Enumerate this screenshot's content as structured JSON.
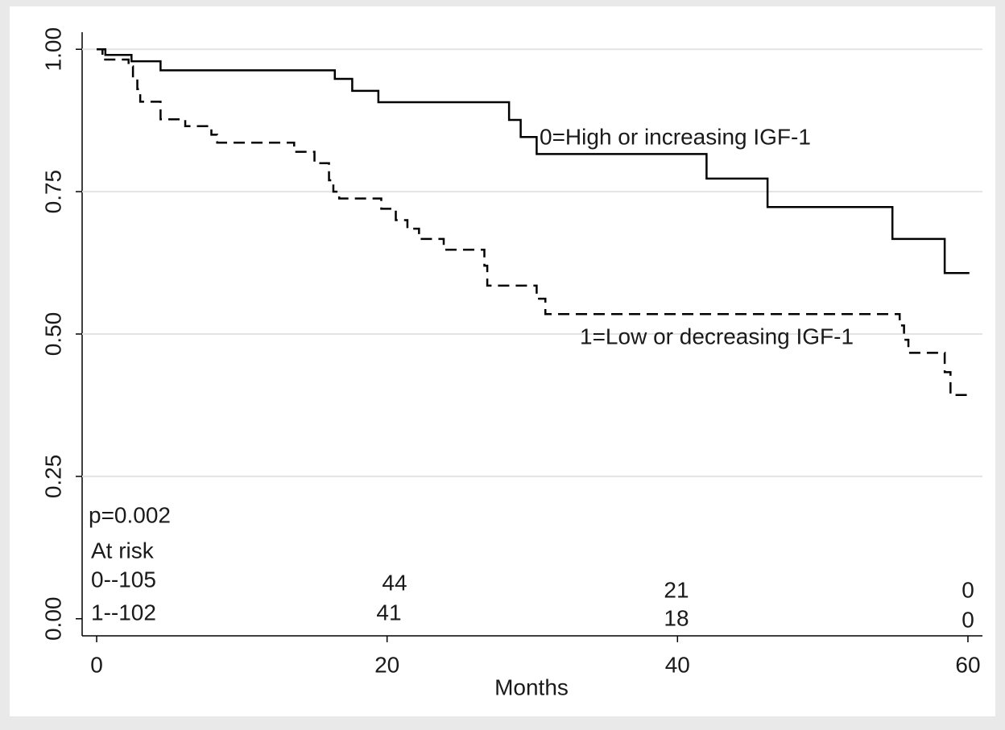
{
  "chart_data": {
    "type": "step",
    "x_label": "Months",
    "xlim": [
      -1,
      61
    ],
    "xticks": [
      0,
      20,
      40,
      60
    ],
    "ylim": [
      -0.03,
      1.03
    ],
    "yticks": [
      {
        "value": 0,
        "label": "0.00"
      },
      {
        "value": 0.25,
        "label": "0.25"
      },
      {
        "value": 0.5,
        "label": "0.50"
      },
      {
        "value": 0.75,
        "label": "0.75"
      },
      {
        "value": 1,
        "label": "1.00"
      }
    ],
    "grid": true,
    "series": [
      {
        "name": "0=High or increasing IGF-1",
        "color": "#000000",
        "dash": "solid",
        "x": [
          0,
          0.6,
          2.4,
          4.4,
          16.4,
          17.6,
          19.4,
          28.4,
          29.2,
          30.3,
          42,
          46.2,
          54.8,
          58.4,
          60.1
        ],
        "values": [
          1.0,
          0.99,
          0.979,
          0.963,
          0.948,
          0.927,
          0.907,
          0.876,
          0.846,
          0.816,
          0.773,
          0.723,
          0.667,
          0.607,
          0.607
        ]
      },
      {
        "name": "1=Low or decreasing IGF-1",
        "color": "#000000",
        "dash": "dashed",
        "x": [
          0,
          0.4,
          2.2,
          2.5,
          2.8,
          3.0,
          4.4,
          6.1,
          7.9,
          8.3,
          13.6,
          15,
          16,
          16.3,
          16.7,
          19.6,
          20.6,
          21.4,
          22.2,
          23.9,
          26.7,
          26.9,
          30.3,
          30.9,
          55.3,
          55.6,
          55.9,
          58.4,
          58.8,
          60
        ],
        "values": [
          1.0,
          0.982,
          0.97,
          0.95,
          0.93,
          0.908,
          0.877,
          0.865,
          0.85,
          0.836,
          0.82,
          0.8,
          0.77,
          0.75,
          0.738,
          0.72,
          0.7,
          0.685,
          0.667,
          0.648,
          0.62,
          0.585,
          0.562,
          0.535,
          0.515,
          0.49,
          0.467,
          0.433,
          0.393,
          0.393
        ]
      }
    ],
    "annotations": [
      "p=0.002"
    ],
    "risk_table": {
      "title": "At risk",
      "rows": [
        {
          "label": "0--105",
          "counts": [
            44,
            21,
            0
          ]
        },
        {
          "label": "1--102",
          "counts": [
            41,
            18,
            0
          ]
        }
      ]
    }
  }
}
